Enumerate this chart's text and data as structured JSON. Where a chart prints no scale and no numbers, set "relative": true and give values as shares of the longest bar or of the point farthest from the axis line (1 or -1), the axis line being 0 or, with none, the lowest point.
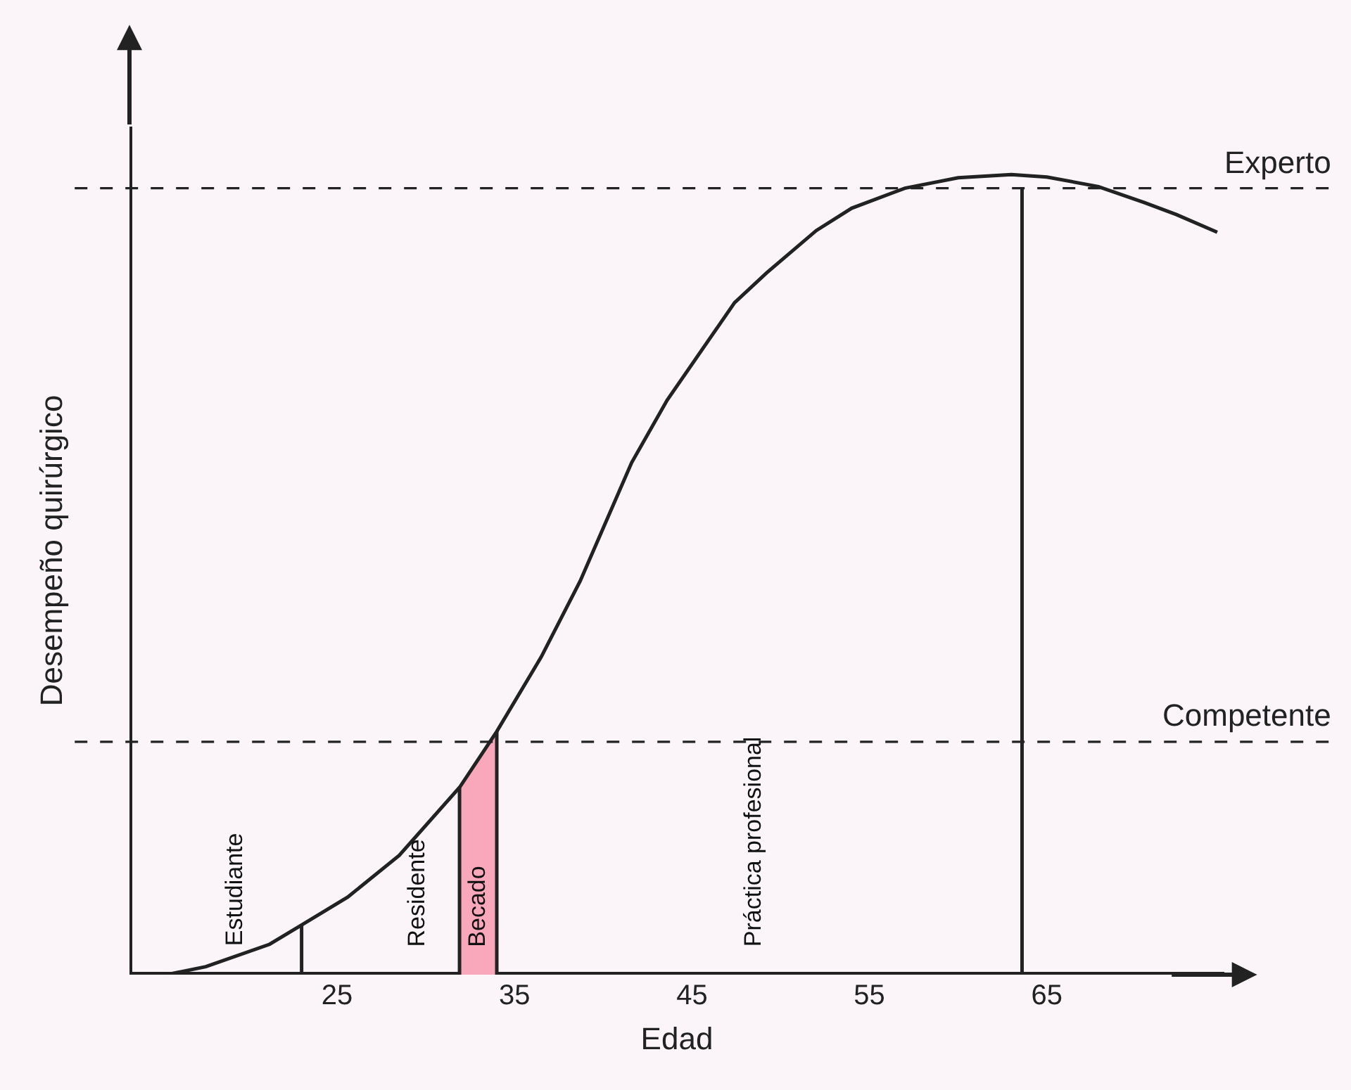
{
  "chart_data": {
    "type": "line",
    "relative": true,
    "xlabel": "Edad",
    "ylabel": "Desempeño quirúrgico",
    "xlim": [
      13.3,
      75
    ],
    "xticks": [
      25,
      35,
      45,
      55,
      65
    ],
    "grid": false,
    "marker": "none",
    "line_style": "solid",
    "series": [
      {
        "color": "#222222",
        "x": [
          15.4,
          17.6,
          21.2,
          23.0,
          25.6,
          28.5,
          31.9,
          34.0,
          36.5,
          38.7,
          41.6,
          43.6,
          47.4,
          49.2,
          52.0,
          54.0,
          57.0,
          60.0,
          63.0,
          65.0,
          67.9,
          70.5,
          72.3,
          74.6
        ],
        "values": [
          0,
          0.01,
          0.038,
          0.062,
          0.097,
          0.149,
          0.234,
          0.304,
          0.397,
          0.492,
          0.64,
          0.718,
          0.84,
          0.877,
          0.93,
          0.958,
          0.983,
          0.996,
          1,
          0.997,
          0.985,
          0.965,
          0.95,
          0.928
        ]
      },
      {
        "type": "area",
        "color": "#f9a8bb",
        "x": [
          31.9,
          32.6,
          33.3,
          34.0
        ],
        "values": [
          0.234,
          0.256,
          0.279,
          0.304
        ]
      },
      {
        "type": "line",
        "color": "#222222",
        "x": [
          23.0,
          23.0
        ],
        "values": [
          0,
          0.062
        ]
      },
      {
        "type": "line",
        "color": "#222222",
        "x": [
          31.9,
          31.9
        ],
        "values": [
          0,
          0.234
        ]
      },
      {
        "type": "line",
        "color": "#222222",
        "x": [
          34.0,
          34.0
        ],
        "values": [
          0,
          0.304
        ]
      },
      {
        "type": "line",
        "color": "#222222",
        "x": [
          63.6,
          63.6
        ],
        "values": [
          0,
          0.983
        ]
      }
    ],
    "ref_lines": [
      {
        "axis": "y",
        "value": 0.983,
        "label": "Experto",
        "color": "#222222",
        "line_style": "dashed"
      },
      {
        "axis": "y",
        "value": 0.291,
        "label": "Competente",
        "color": "#222222",
        "line_style": "dashed"
      }
    ],
    "annotations": [
      "Estudiante",
      "Residente",
      "Becado",
      "Práctica profesional"
    ]
  }
}
